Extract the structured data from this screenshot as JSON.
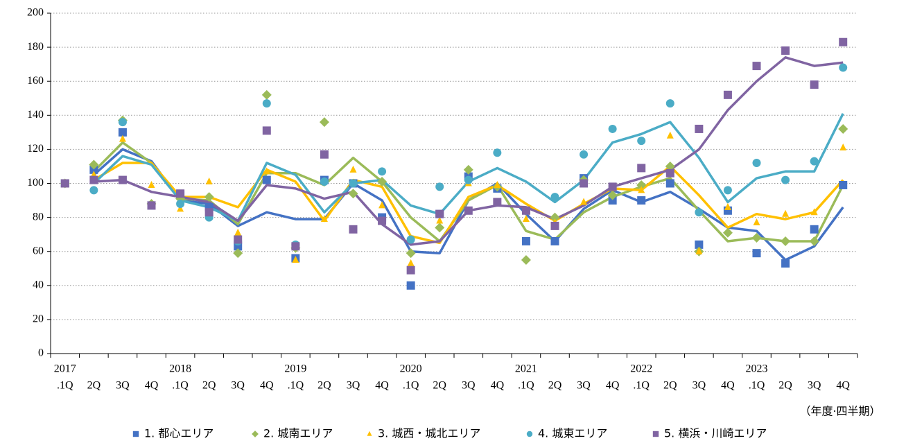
{
  "chart_data": {
    "type": "line",
    "categories": [
      ".1Q",
      "2Q",
      "3Q",
      "4Q",
      ".1Q",
      "2Q",
      "3Q",
      "4Q",
      ".1Q",
      "2Q",
      "3Q",
      "4Q",
      ".1Q",
      "2Q",
      "3Q",
      "4Q",
      ".1Q",
      "2Q",
      "3Q",
      "4Q",
      ".1Q",
      "2Q",
      "3Q",
      "4Q",
      ".1Q",
      "2Q",
      "3Q",
      "4Q"
    ],
    "category_years": [
      "2017",
      null,
      null,
      null,
      "2018",
      null,
      null,
      null,
      "2019",
      null,
      null,
      null,
      "2020",
      null,
      null,
      null,
      "2021",
      null,
      null,
      null,
      "2022",
      null,
      null,
      null,
      "2023",
      null,
      null,
      null
    ],
    "x_axis_label": "（年度·四半期）",
    "ylim": [
      0,
      200
    ],
    "yticks": [
      0,
      20,
      40,
      60,
      80,
      100,
      120,
      140,
      160,
      180,
      200
    ],
    "grid": true,
    "series": [
      {
        "name": "1. 都心エリア",
        "color": "#4472c4",
        "marker": "square",
        "values": [
          100,
          108,
          130,
          87,
          93,
          86,
          63,
          102,
          56,
          102,
          100,
          80,
          40,
          82,
          104,
          97,
          66,
          66,
          103,
          90,
          90,
          100,
          64,
          84,
          59,
          53,
          73,
          99
        ],
        "line_values": [
          null,
          105,
          120,
          113,
          90,
          88,
          75,
          83,
          79,
          79,
          100,
          90,
          60,
          59,
          90,
          100,
          82,
          66,
          85,
          96,
          89,
          95,
          85,
          74,
          72,
          55,
          63,
          86
        ]
      },
      {
        "name": "2. 城南エリア",
        "color": "#9bbb59",
        "marker": "diamond",
        "values": [
          100,
          111,
          137,
          88,
          91,
          92,
          59,
          152,
          62,
          136,
          94,
          101,
          59,
          74,
          108,
          98,
          55,
          80,
          102,
          93,
          99,
          110,
          60,
          71,
          68,
          66,
          66,
          132
        ],
        "line_values": [
          null,
          107,
          124,
          112,
          91,
          90,
          76,
          106,
          106,
          99,
          115,
          101,
          80,
          66,
          90,
          99,
          72,
          67,
          83,
          92,
          98,
          103,
          84,
          66,
          68,
          66,
          66,
          99
        ]
      },
      {
        "name": "3. 城西・城北エリア",
        "color": "#ffc000",
        "marker": "triangle",
        "values": [
          100,
          105,
          126,
          99,
          85,
          101,
          71,
          107,
          55,
          79,
          108,
          87,
          53,
          78,
          100,
          99,
          79,
          77,
          89,
          97,
          96,
          128,
          60,
          86,
          77,
          82,
          83,
          121
        ],
        "line_values": [
          null,
          102,
          112,
          112,
          92,
          92,
          86,
          108,
          101,
          78,
          102,
          98,
          69,
          65,
          92,
          99,
          88,
          78,
          88,
          97,
          96,
          110,
          93,
          74,
          82,
          79,
          83,
          102
        ]
      },
      {
        "name": "4. 城東エリア",
        "color": "#4bacc6",
        "marker": "circle",
        "values": [
          100,
          96,
          136,
          87,
          88,
          80,
          66,
          147,
          64,
          101,
          100,
          107,
          67,
          98,
          102,
          118,
          84,
          92,
          117,
          132,
          125,
          147,
          83,
          96,
          112,
          102,
          113,
          168
        ],
        "line_values": [
          null,
          100,
          116,
          111,
          90,
          86,
          78,
          112,
          105,
          83,
          100,
          102,
          87,
          82,
          101,
          109,
          101,
          89,
          102,
          124,
          129,
          136,
          115,
          89,
          103,
          107,
          107,
          141
        ]
      },
      {
        "name": "5. 横浜・川崎エリア",
        "color": "#8064a2",
        "marker": "square",
        "values": [
          100,
          102,
          102,
          87,
          94,
          83,
          67,
          131,
          63,
          117,
          73,
          78,
          49,
          82,
          84,
          89,
          84,
          75,
          100,
          98,
          109,
          106,
          132,
          152,
          169,
          178,
          158,
          183
        ],
        "line_values": [
          null,
          101,
          102,
          95,
          92,
          89,
          78,
          99,
          97,
          91,
          95,
          76,
          64,
          66,
          84,
          87,
          86,
          79,
          87,
          98,
          103,
          108,
          120,
          143,
          160,
          174,
          169,
          171
        ]
      }
    ]
  }
}
